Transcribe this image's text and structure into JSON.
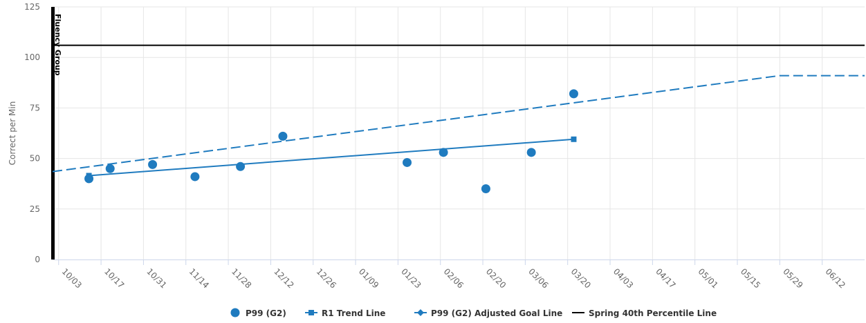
{
  "chart_data": {
    "type": "line",
    "title": "",
    "xlabel": "",
    "ylabel": "Correct per Min",
    "ylim": [
      0,
      125
    ],
    "xlim": [
      "2022-10-01",
      "2023-06-26"
    ],
    "y_ticks": [
      0,
      25,
      50,
      75,
      100,
      125
    ],
    "x_ticks": [
      {
        "date": "2022-10-03",
        "label": "10/03"
      },
      {
        "date": "2022-10-17",
        "label": "10/17"
      },
      {
        "date": "2022-10-31",
        "label": "10/31"
      },
      {
        "date": "2022-11-14",
        "label": "11/14"
      },
      {
        "date": "2022-11-28",
        "label": "11/28"
      },
      {
        "date": "2022-12-12",
        "label": "12/12"
      },
      {
        "date": "2022-12-26",
        "label": "12/26"
      },
      {
        "date": "2023-01-09",
        "label": "01/09"
      },
      {
        "date": "2023-01-23",
        "label": "01/23"
      },
      {
        "date": "2023-02-06",
        "label": "02/06"
      },
      {
        "date": "2023-02-20",
        "label": "02/20"
      },
      {
        "date": "2023-03-06",
        "label": "03/06"
      },
      {
        "date": "2023-03-20",
        "label": "03/20"
      },
      {
        "date": "2023-04-03",
        "label": "04/03"
      },
      {
        "date": "2023-04-17",
        "label": "04/17"
      },
      {
        "date": "2023-05-01",
        "label": "05/01"
      },
      {
        "date": "2023-05-15",
        "label": "05/15"
      },
      {
        "date": "2023-05-29",
        "label": "05/29"
      },
      {
        "date": "2023-06-12",
        "label": "06/12"
      }
    ],
    "grid": true,
    "legend_position": "bottom-center",
    "plot_band": {
      "label": "Fluency Group",
      "date": "2022-10-01"
    },
    "series": [
      {
        "name": "P99 (G2)",
        "type": "scatter",
        "color": "#1f7bbf",
        "marker": "circle",
        "points": [
          {
            "x": "2022-10-13",
            "y": 40
          },
          {
            "x": "2022-10-20",
            "y": 45
          },
          {
            "x": "2022-11-03",
            "y": 47
          },
          {
            "x": "2022-11-17",
            "y": 41
          },
          {
            "x": "2022-12-02",
            "y": 46
          },
          {
            "x": "2022-12-16",
            "y": 61
          },
          {
            "x": "2023-01-26",
            "y": 48
          },
          {
            "x": "2023-02-07",
            "y": 53
          },
          {
            "x": "2023-02-21",
            "y": 35
          },
          {
            "x": "2023-03-08",
            "y": 53
          },
          {
            "x": "2023-03-22",
            "y": 82
          }
        ]
      },
      {
        "name": "R1 Trend Line",
        "type": "line",
        "color": "#1f7bbf",
        "marker": "square",
        "dash": "solid",
        "points": [
          {
            "x": "2022-10-13",
            "y": 41.5
          },
          {
            "x": "2023-03-22",
            "y": 59.5
          }
        ]
      },
      {
        "name": "P99 (G2) Adjusted Goal Line",
        "type": "line",
        "color": "#1f7bbf",
        "marker": "diamond",
        "dash": "dashed",
        "points": [
          {
            "x": "2022-10-01",
            "y": 43.5
          },
          {
            "x": "2023-05-29",
            "y": 91
          },
          {
            "x": "2023-06-26",
            "y": 91
          }
        ]
      },
      {
        "name": "Spring 40th Percentile Line",
        "type": "line",
        "color": "#000000",
        "marker": "none",
        "dash": "solid",
        "points": [
          {
            "x": "2022-10-01",
            "y": 106
          },
          {
            "x": "2023-06-26",
            "y": 106
          }
        ]
      }
    ]
  }
}
